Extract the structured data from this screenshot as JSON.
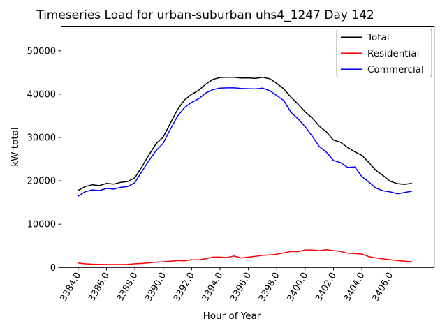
{
  "title": "Timeseries Load for urban-suburban uhs4_1247  Day 142",
  "chart_data": {
    "type": "line",
    "title": "Timeseries Load for urban-suburban uhs4_1247  Day 142",
    "xlabel": "Hour of Year",
    "ylabel": "kW total",
    "grid": false,
    "legend_position": "upper right",
    "xlim": [
      3382.8,
      3409.1
    ],
    "ylim": [
      0,
      55680
    ],
    "xticks": [
      3384,
      3386,
      3388,
      3390,
      3392,
      3394,
      3396,
      3398,
      3400,
      3402,
      3404,
      3406
    ],
    "xtick_labels": [
      "3384.0",
      "3386.0",
      "3388.0",
      "3390.0",
      "3392.0",
      "3394.0",
      "3396.0",
      "3398.0",
      "3400.0",
      "3402.0",
      "3404.0",
      "3406.0"
    ],
    "yticks": [
      0,
      10000,
      20000,
      30000,
      40000,
      50000
    ],
    "ytick_labels": [
      "0",
      "10000",
      "20000",
      "30000",
      "40000",
      "50000"
    ],
    "x": [
      3384.0,
      3384.5,
      3385.0,
      3385.5,
      3386.0,
      3386.5,
      3387.0,
      3387.5,
      3388.0,
      3388.5,
      3389.0,
      3389.5,
      3390.0,
      3390.5,
      3391.0,
      3391.5,
      3392.0,
      3392.5,
      3393.0,
      3393.5,
      3394.0,
      3394.5,
      3395.0,
      3395.5,
      3396.0,
      3396.5,
      3397.0,
      3397.5,
      3398.0,
      3398.5,
      3399.0,
      3399.5,
      3400.0,
      3400.5,
      3401.0,
      3401.5,
      3402.0,
      3402.5,
      3403.0,
      3403.5,
      3404.0,
      3404.5,
      3405.0,
      3405.5,
      3406.0,
      3406.5,
      3407.0,
      3407.5
    ],
    "series": [
      {
        "name": "Total",
        "color": "#000000",
        "values": [
          17800,
          18700,
          19100,
          18900,
          19400,
          19250,
          19650,
          19850,
          20700,
          23300,
          26000,
          28600,
          30100,
          33300,
          36400,
          38700,
          39950,
          40900,
          42300,
          43400,
          43850,
          43900,
          43900,
          43700,
          43750,
          43650,
          43900,
          43550,
          42500,
          41200,
          39300,
          37700,
          35900,
          34500,
          32600,
          31300,
          29400,
          28900,
          27700,
          26700,
          25900,
          24200,
          22400,
          21200,
          19900,
          19350,
          19200,
          19400
        ]
      },
      {
        "name": "Residential",
        "color": "#ff0000",
        "values": [
          1060,
          850,
          780,
          740,
          700,
          690,
          690,
          740,
          870,
          950,
          1100,
          1250,
          1320,
          1450,
          1600,
          1550,
          1800,
          1750,
          2050,
          2400,
          2400,
          2300,
          2650,
          2200,
          2400,
          2600,
          2800,
          2900,
          3050,
          3400,
          3700,
          3650,
          4050,
          4050,
          3900,
          4100,
          3900,
          3700,
          3300,
          3200,
          3100,
          2500,
          2200,
          2000,
          1800,
          1600,
          1450,
          1350
        ]
      },
      {
        "name": "Commercial",
        "color": "#0000ff",
        "values": [
          16450,
          17500,
          17900,
          17750,
          18250,
          18100,
          18500,
          18700,
          19600,
          22200,
          24700,
          27000,
          28700,
          31900,
          34900,
          36900,
          38100,
          38950,
          40250,
          41050,
          41400,
          41450,
          41450,
          41300,
          41250,
          41200,
          41400,
          40800,
          39700,
          38500,
          35800,
          34300,
          32500,
          30300,
          27900,
          26600,
          24700,
          24200,
          23100,
          23200,
          21000,
          19700,
          18300,
          17700,
          17450,
          17000,
          17300,
          17600
        ]
      }
    ]
  }
}
